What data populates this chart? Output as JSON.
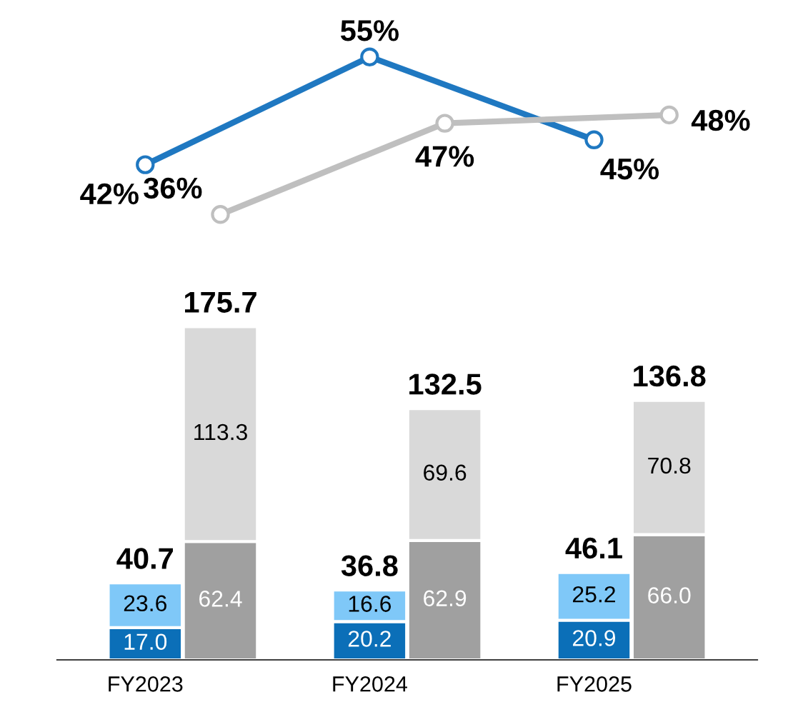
{
  "chart_data": [
    {
      "type": "line",
      "categories": [
        null,
        null,
        null,
        null,
        null,
        null
      ],
      "tick_labels": false,
      "marker": "circle",
      "line_style": "solid",
      "series": [
        {
          "color": "#1f78c1",
          "values": [
            42,
            null,
            55,
            null,
            45,
            null
          ],
          "value_labels": [
            "42%",
            null,
            "55%",
            null,
            "45%",
            null
          ]
        },
        {
          "color": "#bfbfbf",
          "values": [
            null,
            36,
            null,
            47,
            null,
            48
          ],
          "value_labels": [
            null,
            "36%",
            null,
            "47%",
            null,
            "48%"
          ]
        }
      ]
    },
    {
      "type": "bar",
      "stacked": true,
      "categories": [
        "FY2023",
        null,
        "FY2024",
        null,
        "FY2025",
        null
      ],
      "tick_labels": "x",
      "series": [
        {
          "color": "#0b6fb8",
          "values": [
            17.0,
            null,
            20.2,
            null,
            20.9,
            null
          ],
          "value_labels": [
            "17.0",
            null,
            "20.2",
            null,
            "20.9",
            null
          ]
        },
        {
          "color": "#7fc8f8",
          "values": [
            23.6,
            null,
            16.6,
            null,
            25.2,
            null
          ],
          "value_labels": [
            "23.6",
            null,
            "16.6",
            null,
            "25.2",
            null
          ]
        },
        {
          "color": "#a0a0a0",
          "values": [
            null,
            62.4,
            null,
            62.9,
            null,
            66.0
          ],
          "value_labels": [
            null,
            "62.4",
            null,
            "62.9",
            null,
            "66.0"
          ]
        },
        {
          "color": "#d9d9d9",
          "values": [
            null,
            113.3,
            null,
            69.6,
            null,
            70.8
          ],
          "value_labels": [
            null,
            "113.3",
            null,
            "69.6",
            null,
            "70.8"
          ]
        }
      ],
      "totals": [
        "40.7",
        "175.7",
        "36.8",
        "132.5",
        "46.1",
        "136.8"
      ]
    }
  ]
}
